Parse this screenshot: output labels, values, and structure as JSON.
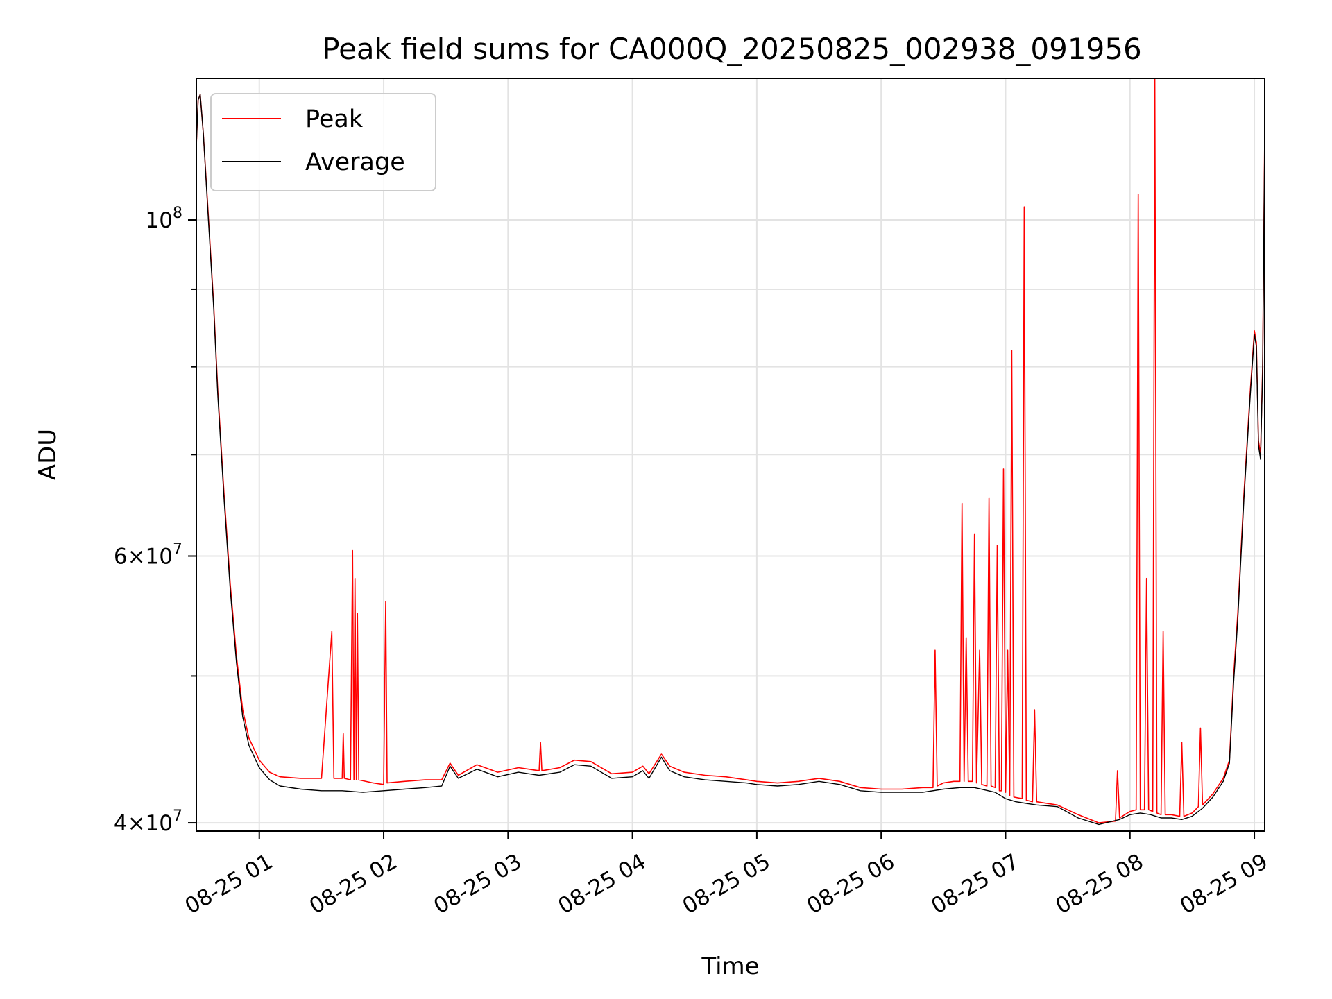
{
  "chart_data": {
    "type": "line",
    "title": "Peak field sums for CA000Q_20250825_002938_091956",
    "xlabel": "Time",
    "ylabel": "ADU",
    "yscale": "log",
    "ylim": [
      39500000,
      124000000
    ],
    "xlim": [
      "2025-08-25 00:29:38",
      "2025-08-25 09:05:00"
    ],
    "grid": true,
    "legend_position": "upper-left",
    "x_ticks": [
      {
        "value": "2025-08-25 01:00",
        "label": "08-25 01"
      },
      {
        "value": "2025-08-25 02:00",
        "label": "08-25 02"
      },
      {
        "value": "2025-08-25 03:00",
        "label": "08-25 03"
      },
      {
        "value": "2025-08-25 04:00",
        "label": "08-25 04"
      },
      {
        "value": "2025-08-25 05:00",
        "label": "08-25 05"
      },
      {
        "value": "2025-08-25 06:00",
        "label": "08-25 06"
      },
      {
        "value": "2025-08-25 07:00",
        "label": "08-25 07"
      },
      {
        "value": "2025-08-25 08:00",
        "label": "08-25 08"
      },
      {
        "value": "2025-08-25 09:00",
        "label": "08-25 09"
      }
    ],
    "y_major_ticks": [
      {
        "value": 100000000,
        "base": "10",
        "exp": "8",
        "mant": ""
      },
      {
        "value": 60000000,
        "base": "10",
        "exp": "7",
        "mant": "6"
      },
      {
        "value": 40000000,
        "base": "10",
        "exp": "7",
        "mant": "4"
      }
    ],
    "y_minor_ticks": [
      50000000,
      70000000,
      80000000,
      90000000
    ],
    "series": [
      {
        "name": "Peak",
        "color": "#ff0000",
        "points": [
          [
            "2025-08-25 00:29:38",
            112000000
          ],
          [
            "2025-08-25 00:30:30",
            120000000
          ],
          [
            "2025-08-25 00:31:30",
            121000000
          ],
          [
            "2025-08-25 00:33:00",
            114000000
          ],
          [
            "2025-08-25 00:35:00",
            103000000
          ],
          [
            "2025-08-25 00:38:00",
            88000000
          ],
          [
            "2025-08-25 00:40:00",
            77000000
          ],
          [
            "2025-08-25 00:43:00",
            66000000
          ],
          [
            "2025-08-25 00:46:00",
            57500000
          ],
          [
            "2025-08-25 00:49:00",
            51500000
          ],
          [
            "2025-08-25 00:52:00",
            47500000
          ],
          [
            "2025-08-25 00:55:00",
            45500000
          ],
          [
            "2025-08-25 01:00:00",
            44000000
          ],
          [
            "2025-08-25 01:05:00",
            43200000
          ],
          [
            "2025-08-25 01:10:00",
            42900000
          ],
          [
            "2025-08-25 01:20:00",
            42800000
          ],
          [
            "2025-08-25 01:30:00",
            42800000
          ],
          [
            "2025-08-25 01:35:00",
            53500000
          ],
          [
            "2025-08-25 01:36:00",
            42800000
          ],
          [
            "2025-08-25 01:40:00",
            42800000
          ],
          [
            "2025-08-25 01:40:30",
            45800000
          ],
          [
            "2025-08-25 01:41:00",
            42800000
          ],
          [
            "2025-08-25 01:44:00",
            42700000
          ],
          [
            "2025-08-25 01:45:00",
            60500000
          ],
          [
            "2025-08-25 01:45:40",
            42700000
          ],
          [
            "2025-08-25 01:46:10",
            58000000
          ],
          [
            "2025-08-25 01:46:50",
            42700000
          ],
          [
            "2025-08-25 01:47:20",
            55000000
          ],
          [
            "2025-08-25 01:48:00",
            42700000
          ],
          [
            "2025-08-25 01:55:00",
            42500000
          ],
          [
            "2025-08-25 02:00:00",
            42400000
          ],
          [
            "2025-08-25 02:01:00",
            56000000
          ],
          [
            "2025-08-25 02:01:40",
            42500000
          ],
          [
            "2025-08-25 02:10:00",
            42600000
          ],
          [
            "2025-08-25 02:20:00",
            42700000
          ],
          [
            "2025-08-25 02:28:00",
            42700000
          ],
          [
            "2025-08-25 02:32:00",
            43800000
          ],
          [
            "2025-08-25 02:36:00",
            43000000
          ],
          [
            "2025-08-25 02:45:00",
            43700000
          ],
          [
            "2025-08-25 02:55:00",
            43200000
          ],
          [
            "2025-08-25 03:05:00",
            43500000
          ],
          [
            "2025-08-25 03:15:00",
            43300000
          ],
          [
            "2025-08-25 03:15:40",
            45200000
          ],
          [
            "2025-08-25 03:16:20",
            43300000
          ],
          [
            "2025-08-25 03:25:00",
            43500000
          ],
          [
            "2025-08-25 03:32:00",
            44000000
          ],
          [
            "2025-08-25 03:40:00",
            43900000
          ],
          [
            "2025-08-25 03:50:00",
            43100000
          ],
          [
            "2025-08-25 04:00:00",
            43200000
          ],
          [
            "2025-08-25 04:05:00",
            43600000
          ],
          [
            "2025-08-25 04:08:00",
            43100000
          ],
          [
            "2025-08-25 04:14:00",
            44400000
          ],
          [
            "2025-08-25 04:18:00",
            43600000
          ],
          [
            "2025-08-25 04:25:00",
            43200000
          ],
          [
            "2025-08-25 04:35:00",
            43000000
          ],
          [
            "2025-08-25 04:45:00",
            42900000
          ],
          [
            "2025-08-25 04:55:00",
            42700000
          ],
          [
            "2025-08-25 05:00:00",
            42600000
          ],
          [
            "2025-08-25 05:10:00",
            42500000
          ],
          [
            "2025-08-25 05:20:00",
            42600000
          ],
          [
            "2025-08-25 05:30:00",
            42800000
          ],
          [
            "2025-08-25 05:40:00",
            42600000
          ],
          [
            "2025-08-25 05:50:00",
            42200000
          ],
          [
            "2025-08-25 06:00:00",
            42100000
          ],
          [
            "2025-08-25 06:10:00",
            42100000
          ],
          [
            "2025-08-25 06:20:00",
            42200000
          ],
          [
            "2025-08-25 06:25:00",
            42200000
          ],
          [
            "2025-08-25 06:26:00",
            52000000
          ],
          [
            "2025-08-25 06:27:00",
            42300000
          ],
          [
            "2025-08-25 06:30:00",
            42500000
          ],
          [
            "2025-08-25 06:35:00",
            42600000
          ],
          [
            "2025-08-25 06:38:00",
            42600000
          ],
          [
            "2025-08-25 06:39:00",
            65000000
          ],
          [
            "2025-08-25 06:40:00",
            42600000
          ],
          [
            "2025-08-25 06:41:00",
            53000000
          ],
          [
            "2025-08-25 06:42:00",
            42600000
          ],
          [
            "2025-08-25 06:44:00",
            42600000
          ],
          [
            "2025-08-25 06:45:00",
            62000000
          ],
          [
            "2025-08-25 06:46:00",
            42500000
          ],
          [
            "2025-08-25 06:47:30",
            52000000
          ],
          [
            "2025-08-25 06:48:30",
            42400000
          ],
          [
            "2025-08-25 06:51:00",
            42300000
          ],
          [
            "2025-08-25 06:52:00",
            65500000
          ],
          [
            "2025-08-25 06:53:00",
            42300000
          ],
          [
            "2025-08-25 06:55:00",
            42200000
          ],
          [
            "2025-08-25 06:56:00",
            61000000
          ],
          [
            "2025-08-25 06:57:00",
            42000000
          ],
          [
            "2025-08-25 06:58:00",
            42000000
          ],
          [
            "2025-08-25 06:59:00",
            68500000
          ],
          [
            "2025-08-25 07:00:00",
            41900000
          ],
          [
            "2025-08-25 07:01:00",
            52000000
          ],
          [
            "2025-08-25 07:02:00",
            41700000
          ],
          [
            "2025-08-25 07:03:00",
            82000000
          ],
          [
            "2025-08-25 07:04:00",
            41600000
          ],
          [
            "2025-08-25 07:08:00",
            41500000
          ],
          [
            "2025-08-25 07:09:00",
            102000000
          ],
          [
            "2025-08-25 07:10:00",
            41400000
          ],
          [
            "2025-08-25 07:13:00",
            41300000
          ],
          [
            "2025-08-25 07:14:00",
            47500000
          ],
          [
            "2025-08-25 07:15:00",
            41300000
          ],
          [
            "2025-08-25 07:25:00",
            41100000
          ],
          [
            "2025-08-25 07:35:00",
            40500000
          ],
          [
            "2025-08-25 07:45:00",
            40000000
          ],
          [
            "2025-08-25 07:53:00",
            40100000
          ],
          [
            "2025-08-25 07:54:00",
            43300000
          ],
          [
            "2025-08-25 07:55:00",
            40300000
          ],
          [
            "2025-08-25 08:00:00",
            40700000
          ],
          [
            "2025-08-25 08:03:00",
            40800000
          ],
          [
            "2025-08-25 08:04:00",
            104000000
          ],
          [
            "2025-08-25 08:05:00",
            40800000
          ],
          [
            "2025-08-25 08:07:00",
            40800000
          ],
          [
            "2025-08-25 08:08:00",
            58000000
          ],
          [
            "2025-08-25 08:09:00",
            40800000
          ],
          [
            "2025-08-25 08:11:00",
            40700000
          ],
          [
            "2025-08-25 08:12:00",
            124000000
          ],
          [
            "2025-08-25 08:13:00",
            40600000
          ],
          [
            "2025-08-25 08:15:00",
            40500000
          ],
          [
            "2025-08-25 08:16:00",
            53500000
          ],
          [
            "2025-08-25 08:17:00",
            40500000
          ],
          [
            "2025-08-25 08:20:00",
            40500000
          ],
          [
            "2025-08-25 08:24:00",
            40400000
          ],
          [
            "2025-08-25 08:25:00",
            45200000
          ],
          [
            "2025-08-25 08:26:00",
            40400000
          ],
          [
            "2025-08-25 08:30:00",
            40600000
          ],
          [
            "2025-08-25 08:33:00",
            41000000
          ],
          [
            "2025-08-25 08:34:00",
            46200000
          ],
          [
            "2025-08-25 08:35:00",
            41100000
          ],
          [
            "2025-08-25 08:40:00",
            41800000
          ],
          [
            "2025-08-25 08:45:00",
            42800000
          ],
          [
            "2025-08-25 08:48:00",
            44000000
          ],
          [
            "2025-08-25 08:50:00",
            50000000
          ],
          [
            "2025-08-25 08:52:00",
            55000000
          ],
          [
            "2025-08-25 08:55:00",
            66000000
          ],
          [
            "2025-08-25 08:58:00",
            77000000
          ],
          [
            "2025-08-25 09:00:00",
            84500000
          ],
          [
            "2025-08-25 09:01:00",
            83000000
          ],
          [
            "2025-08-25 09:02:00",
            71500000
          ],
          [
            "2025-08-25 09:03:00",
            70000000
          ],
          [
            "2025-08-25 09:04:00",
            80000000
          ],
          [
            "2025-08-25 09:05:00",
            114000000
          ]
        ]
      },
      {
        "name": "Average",
        "color": "#000000",
        "points": [
          [
            "2025-08-25 00:29:38",
            112000000
          ],
          [
            "2025-08-25 00:30:30",
            120000000
          ],
          [
            "2025-08-25 00:31:30",
            121000000
          ],
          [
            "2025-08-25 00:33:00",
            114000000
          ],
          [
            "2025-08-25 00:35:00",
            102500000
          ],
          [
            "2025-08-25 00:38:00",
            87500000
          ],
          [
            "2025-08-25 00:40:00",
            76500000
          ],
          [
            "2025-08-25 00:43:00",
            65500000
          ],
          [
            "2025-08-25 00:46:00",
            57000000
          ],
          [
            "2025-08-25 00:49:00",
            51000000
          ],
          [
            "2025-08-25 00:52:00",
            47000000
          ],
          [
            "2025-08-25 00:55:00",
            45000000
          ],
          [
            "2025-08-25 01:00:00",
            43500000
          ],
          [
            "2025-08-25 01:05:00",
            42700000
          ],
          [
            "2025-08-25 01:10:00",
            42300000
          ],
          [
            "2025-08-25 01:20:00",
            42100000
          ],
          [
            "2025-08-25 01:30:00",
            42000000
          ],
          [
            "2025-08-25 01:40:00",
            42000000
          ],
          [
            "2025-08-25 01:50:00",
            41900000
          ],
          [
            "2025-08-25 02:00:00",
            42000000
          ],
          [
            "2025-08-25 02:10:00",
            42100000
          ],
          [
            "2025-08-25 02:20:00",
            42200000
          ],
          [
            "2025-08-25 02:28:00",
            42300000
          ],
          [
            "2025-08-25 02:32:00",
            43600000
          ],
          [
            "2025-08-25 02:36:00",
            42800000
          ],
          [
            "2025-08-25 02:45:00",
            43400000
          ],
          [
            "2025-08-25 02:55:00",
            42900000
          ],
          [
            "2025-08-25 03:05:00",
            43200000
          ],
          [
            "2025-08-25 03:15:00",
            43000000
          ],
          [
            "2025-08-25 03:25:00",
            43200000
          ],
          [
            "2025-08-25 03:32:00",
            43700000
          ],
          [
            "2025-08-25 03:40:00",
            43600000
          ],
          [
            "2025-08-25 03:50:00",
            42800000
          ],
          [
            "2025-08-25 04:00:00",
            42900000
          ],
          [
            "2025-08-25 04:05:00",
            43300000
          ],
          [
            "2025-08-25 04:08:00",
            42800000
          ],
          [
            "2025-08-25 04:14:00",
            44200000
          ],
          [
            "2025-08-25 04:18:00",
            43300000
          ],
          [
            "2025-08-25 04:25:00",
            42900000
          ],
          [
            "2025-08-25 04:35:00",
            42700000
          ],
          [
            "2025-08-25 04:45:00",
            42600000
          ],
          [
            "2025-08-25 04:55:00",
            42500000
          ],
          [
            "2025-08-25 05:00:00",
            42400000
          ],
          [
            "2025-08-25 05:10:00",
            42300000
          ],
          [
            "2025-08-25 05:20:00",
            42400000
          ],
          [
            "2025-08-25 05:30:00",
            42600000
          ],
          [
            "2025-08-25 05:40:00",
            42400000
          ],
          [
            "2025-08-25 05:50:00",
            42000000
          ],
          [
            "2025-08-25 06:00:00",
            41900000
          ],
          [
            "2025-08-25 06:10:00",
            41900000
          ],
          [
            "2025-08-25 06:20:00",
            41900000
          ],
          [
            "2025-08-25 06:30:00",
            42100000
          ],
          [
            "2025-08-25 06:38:00",
            42200000
          ],
          [
            "2025-08-25 06:45:00",
            42200000
          ],
          [
            "2025-08-25 06:55:00",
            41900000
          ],
          [
            "2025-08-25 07:00:00",
            41500000
          ],
          [
            "2025-08-25 07:05:00",
            41300000
          ],
          [
            "2025-08-25 07:10:00",
            41200000
          ],
          [
            "2025-08-25 07:15:00",
            41100000
          ],
          [
            "2025-08-25 07:25:00",
            41000000
          ],
          [
            "2025-08-25 07:35:00",
            40300000
          ],
          [
            "2025-08-25 07:45:00",
            39900000
          ],
          [
            "2025-08-25 07:55:00",
            40200000
          ],
          [
            "2025-08-25 08:00:00",
            40500000
          ],
          [
            "2025-08-25 08:05:00",
            40600000
          ],
          [
            "2025-08-25 08:10:00",
            40500000
          ],
          [
            "2025-08-25 08:15:00",
            40300000
          ],
          [
            "2025-08-25 08:20:00",
            40300000
          ],
          [
            "2025-08-25 08:25:00",
            40200000
          ],
          [
            "2025-08-25 08:30:00",
            40400000
          ],
          [
            "2025-08-25 08:35:00",
            40900000
          ],
          [
            "2025-08-25 08:40:00",
            41600000
          ],
          [
            "2025-08-25 08:45:00",
            42600000
          ],
          [
            "2025-08-25 08:48:00",
            43800000
          ],
          [
            "2025-08-25 08:50:00",
            49500000
          ],
          [
            "2025-08-25 08:52:00",
            54500000
          ],
          [
            "2025-08-25 08:55:00",
            65500000
          ],
          [
            "2025-08-25 08:58:00",
            76500000
          ],
          [
            "2025-08-25 09:00:00",
            84000000
          ],
          [
            "2025-08-25 09:01:00",
            82500000
          ],
          [
            "2025-08-25 09:02:00",
            71000000
          ],
          [
            "2025-08-25 09:03:00",
            69500000
          ],
          [
            "2025-08-25 09:04:00",
            79500000
          ],
          [
            "2025-08-25 09:05:00",
            113000000
          ]
        ]
      }
    ]
  }
}
